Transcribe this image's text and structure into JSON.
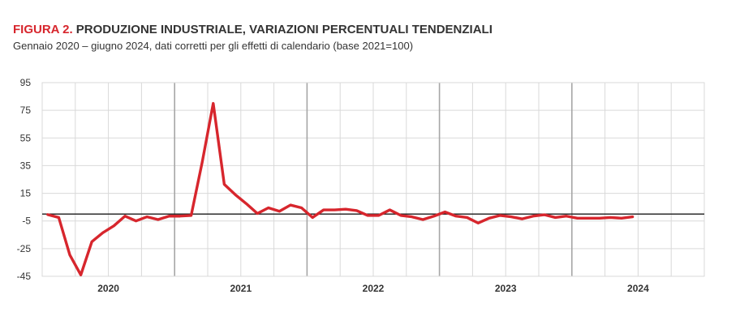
{
  "header": {
    "figure_label": "FIGURA 2.",
    "title": "PRODUZIONE INDUSTRIALE, VARIAZIONI PERCENTUALI TENDENZIALI",
    "subtitle": "Gennaio 2020 – giugno 2024, dati corretti per gli effetti di calendario (base 2021=100)"
  },
  "chart_data": {
    "type": "line",
    "title": "PRODUZIONE INDUSTRIALE, VARIAZIONI PERCENTUALI TENDENZIALI",
    "xlabel": "",
    "ylabel": "",
    "ylim": [
      -45,
      95
    ],
    "yticks": [
      95,
      75,
      55,
      35,
      15,
      -5,
      -25,
      -45
    ],
    "year_labels": [
      "2020",
      "2021",
      "2022",
      "2023",
      "2024"
    ],
    "x_range": [
      "2020-01",
      "2024-12"
    ],
    "grid": true,
    "zero_line": true,
    "line_color": "#d7262d",
    "series": [
      {
        "x": [
          "2020-01",
          "2020-02",
          "2020-03",
          "2020-04",
          "2020-05",
          "2020-06",
          "2020-07",
          "2020-08",
          "2020-09",
          "2020-10",
          "2020-11",
          "2020-12",
          "2021-01",
          "2021-02",
          "2021-03",
          "2021-04",
          "2021-05",
          "2021-06",
          "2021-07",
          "2021-08",
          "2021-09",
          "2021-10",
          "2021-11",
          "2021-12",
          "2022-01",
          "2022-02",
          "2022-03",
          "2022-04",
          "2022-05",
          "2022-06",
          "2022-07",
          "2022-08",
          "2022-09",
          "2022-10",
          "2022-11",
          "2022-12",
          "2023-01",
          "2023-02",
          "2023-03",
          "2023-04",
          "2023-05",
          "2023-06",
          "2023-07",
          "2023-08",
          "2023-09",
          "2023-10",
          "2023-11",
          "2023-12",
          "2024-01",
          "2024-02",
          "2024-03",
          "2024-04",
          "2024-05",
          "2024-06"
        ],
        "values": [
          -0.4,
          -2.5,
          -29.5,
          -44.0,
          -20.0,
          -13.5,
          -8.5,
          -1.5,
          -5.0,
          -2.0,
          -4.0,
          -1.5,
          -1.5,
          -1.0,
          37.5,
          80.0,
          21.5,
          14.0,
          7.5,
          0.4,
          4.5,
          2.0,
          6.5,
          4.5,
          -2.5,
          3.0,
          3.0,
          3.5,
          2.5,
          -1.0,
          -1.0,
          3.0,
          -1.0,
          -2.0,
          -4.0,
          -1.5,
          1.5,
          -1.5,
          -2.5,
          -6.5,
          -3.0,
          -1.0,
          -2.0,
          -3.5,
          -1.5,
          -0.5,
          -2.5,
          -1.5,
          -3.0,
          -3.0,
          -3.0,
          -2.5,
          -3.0,
          -2.0
        ]
      }
    ]
  }
}
